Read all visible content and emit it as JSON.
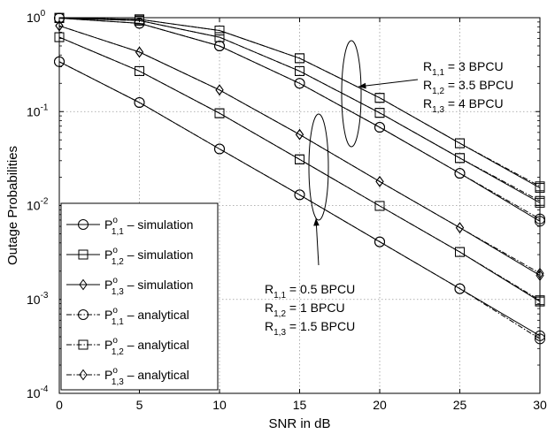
{
  "chart_data": {
    "type": "line",
    "xlabel": "SNR in dB",
    "ylabel": "Outage Probabilities",
    "xlim": [
      0,
      30
    ],
    "ylim": [
      0.0001,
      1
    ],
    "yscale": "log",
    "grid": true,
    "legend_position": "bottom-left",
    "x_ticks": [
      "0",
      "5",
      "10",
      "15",
      "20",
      "25",
      "30"
    ],
    "y_ticks": [
      {
        "base": "10",
        "exp": "0"
      },
      {
        "base": "10",
        "exp": "-1"
      },
      {
        "base": "10",
        "exp": "-2"
      },
      {
        "base": "10",
        "exp": "-3"
      },
      {
        "base": "10",
        "exp": "-4"
      }
    ],
    "x": [
      0,
      5,
      10,
      15,
      20,
      25,
      30
    ],
    "series": [
      {
        "marker": "circle",
        "style": "solid",
        "label": {
          "main": "P",
          "sup": "o",
          "sub": "1,1",
          "suffix": " – simulation"
        },
        "values": [
          0.34,
          0.125,
          0.04,
          0.013,
          0.0041,
          0.0013,
          0.00041
        ]
      },
      {
        "marker": "square",
        "style": "solid",
        "label": {
          "main": "P",
          "sup": "o",
          "sub": "1,2",
          "suffix": " – simulation"
        },
        "values": [
          0.62,
          0.27,
          0.096,
          0.031,
          0.0099,
          0.0032,
          0.00095
        ]
      },
      {
        "marker": "diamond",
        "style": "solid",
        "label": {
          "main": "P",
          "sup": "o",
          "sub": "1,3",
          "suffix": " – simulation"
        },
        "values": [
          0.82,
          0.43,
          0.17,
          0.057,
          0.018,
          0.0058,
          0.0018
        ]
      },
      {
        "marker": "circle",
        "style": "dashdot",
        "label": {
          "main": "P",
          "sup": "o",
          "sub": "1,1",
          "suffix": " – analytical"
        },
        "values": [
          0.34,
          0.125,
          0.04,
          0.013,
          0.0041,
          0.0013,
          0.00038
        ]
      },
      {
        "marker": "square",
        "style": "dashdot",
        "label": {
          "main": "P",
          "sup": "o",
          "sub": "1,2",
          "suffix": " – analytical"
        },
        "values": [
          0.62,
          0.27,
          0.096,
          0.031,
          0.0099,
          0.0032,
          0.00098
        ]
      },
      {
        "marker": "diamond",
        "style": "dashdot",
        "label": {
          "main": "P",
          "sup": "o",
          "sub": "1,3",
          "suffix": " – analytical"
        },
        "values": [
          0.82,
          0.43,
          0.17,
          0.057,
          0.018,
          0.0058,
          0.0019
        ]
      },
      {
        "marker": "circle",
        "style": "solid",
        "values": [
          0.99,
          0.87,
          0.5,
          0.2,
          0.068,
          0.022,
          0.0068
        ]
      },
      {
        "marker": "square",
        "style": "solid",
        "values": [
          0.99,
          0.93,
          0.62,
          0.27,
          0.097,
          0.032,
          0.0107
        ]
      },
      {
        "marker": "square",
        "style": "solid",
        "values": [
          0.995,
          0.96,
          0.73,
          0.37,
          0.14,
          0.046,
          0.0154
        ]
      },
      {
        "marker": "circle",
        "style": "dashdot",
        "values": [
          0.99,
          0.87,
          0.5,
          0.2,
          0.068,
          0.022,
          0.0072
        ]
      },
      {
        "marker": "square",
        "style": "dashdot",
        "values": [
          0.99,
          0.93,
          0.62,
          0.27,
          0.097,
          0.032,
          0.0112
        ]
      },
      {
        "marker": "square",
        "style": "dashdot",
        "values": [
          0.995,
          0.96,
          0.73,
          0.37,
          0.14,
          0.046,
          0.016
        ]
      }
    ],
    "annotations": [
      {
        "lines": [
          {
            "main": "R",
            "sub": "1,1",
            "value": " = 3     BPCU"
          },
          {
            "main": "R",
            "sub": "1,2",
            "value": " = 3.5 BPCU"
          },
          {
            "main": "R",
            "sub": "1,3",
            "value": " = 4     BPCU"
          }
        ]
      },
      {
        "lines": [
          {
            "main": "R",
            "sub": "1,1",
            "value": " = 0.5 BPCU"
          },
          {
            "main": "R",
            "sub": "1,2",
            "value": " = 1     BPCU"
          },
          {
            "main": "R",
            "sub": "1,3",
            "value": " = 1.5 BPCU"
          }
        ]
      }
    ]
  }
}
